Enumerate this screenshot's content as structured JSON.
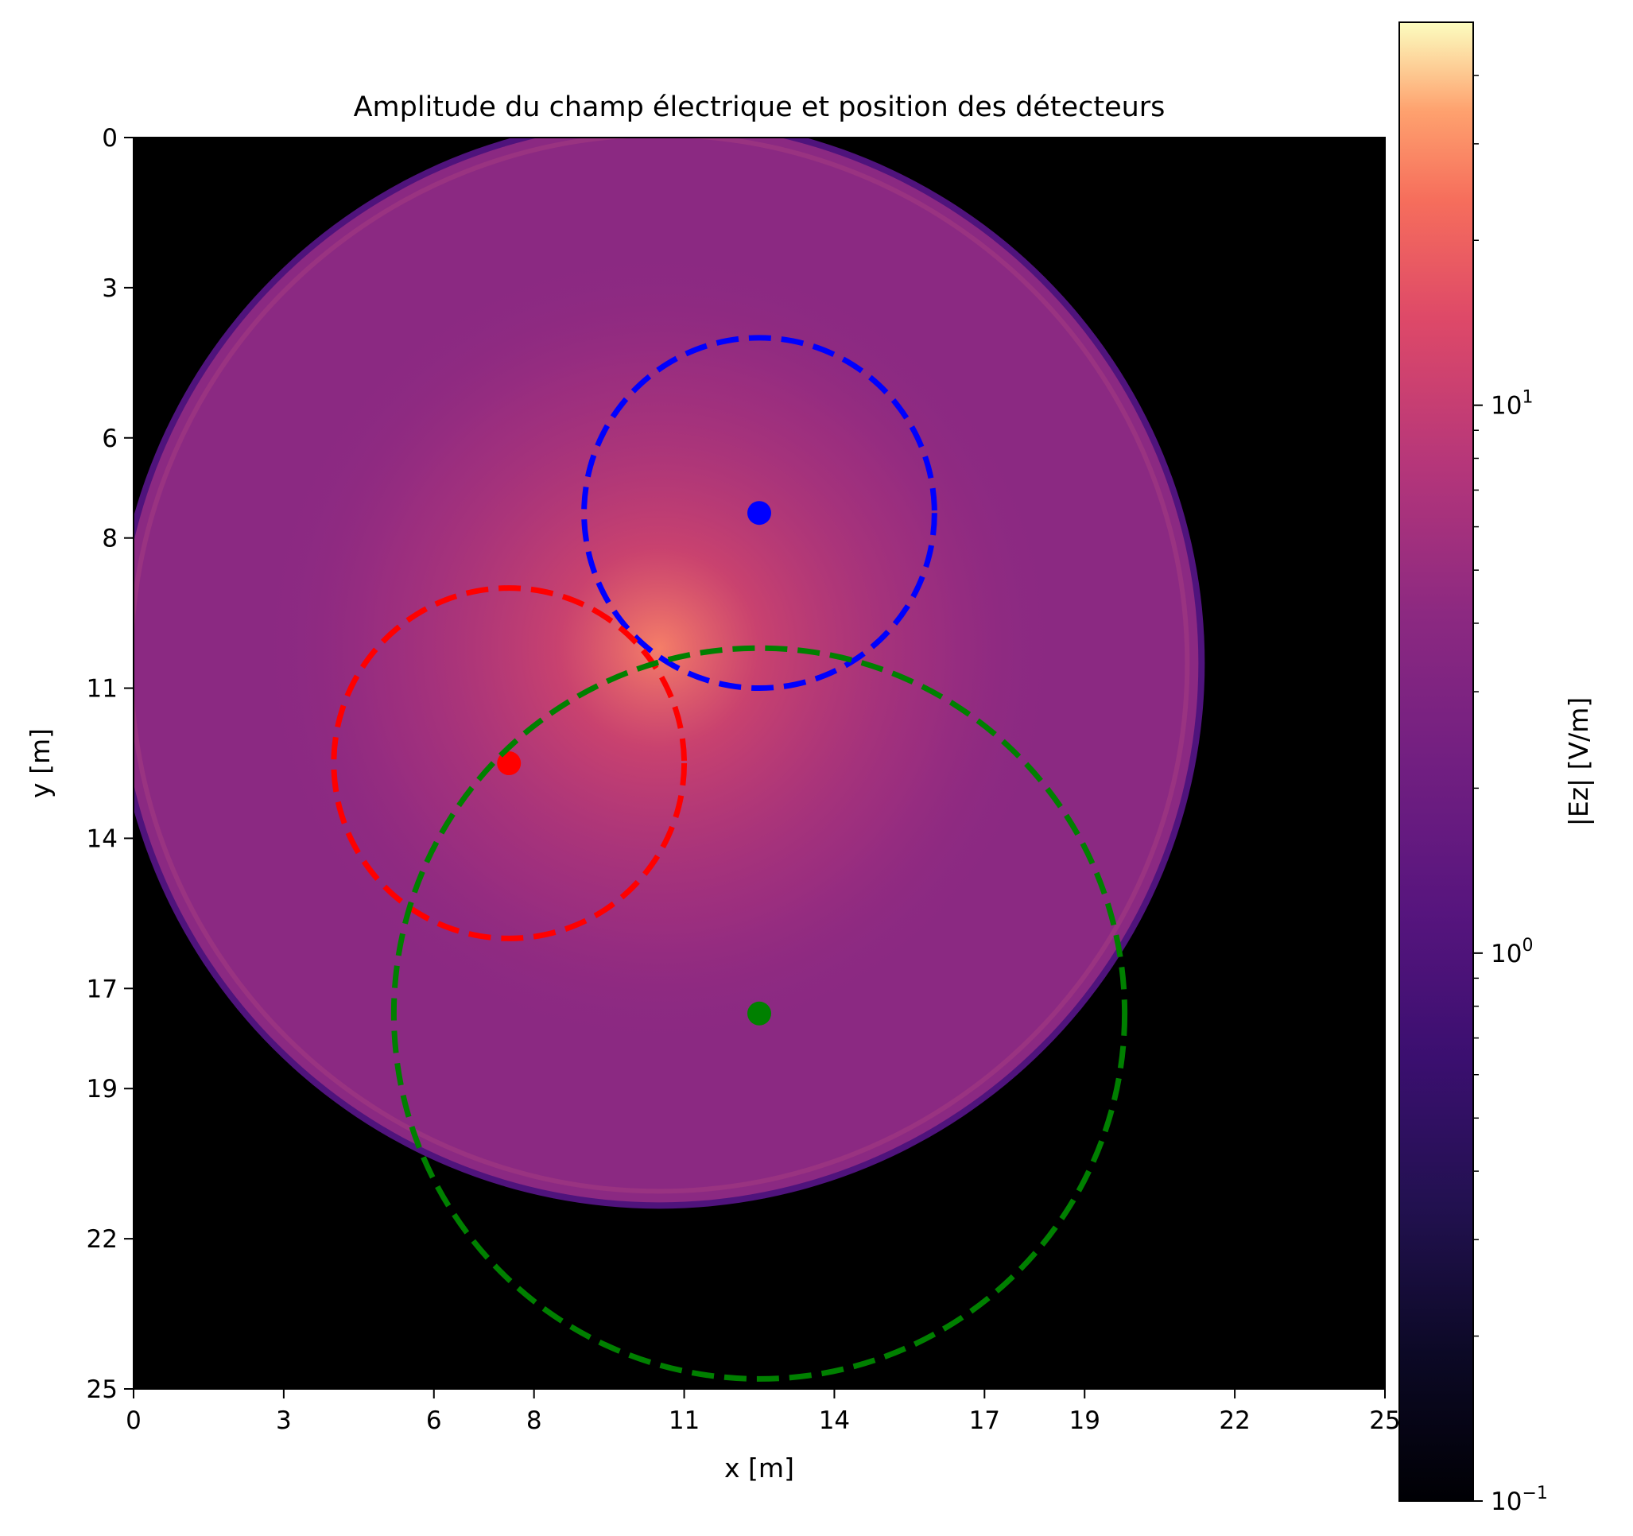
{
  "chart_data": {
    "type": "heatmap",
    "title": "Amplitude du champ électrique et position des détecteurs",
    "xlabel": "x [m]",
    "ylabel": "y [m]",
    "xlim": [
      0,
      25
    ],
    "ylim": [
      25,
      0
    ],
    "x_ticks": [
      0,
      3,
      6,
      8,
      11,
      14,
      17,
      19,
      22,
      25
    ],
    "x_tick_labels": [
      "0",
      "3",
      "6",
      "8",
      "11",
      "14",
      "17",
      "19",
      "22",
      "25"
    ],
    "y_ticks": [
      0,
      3,
      6,
      8,
      11,
      14,
      17,
      19,
      22,
      25
    ],
    "y_tick_labels": [
      "0",
      "3",
      "6",
      "8",
      "11",
      "14",
      "17",
      "19",
      "22",
      "25"
    ],
    "colormap": "magma",
    "background_color": "#000000",
    "field": {
      "center_x": 10.5,
      "center_y": 10.5,
      "radius": 10.9,
      "peak_value": 6.0,
      "typical_value": 1.0
    },
    "source": {
      "x": 10.5,
      "y": 10.2
    },
    "colorbar": {
      "label": "|Ez| [V/m]",
      "scale": "log",
      "min": 0.1,
      "max": 50,
      "tick_labels": [
        {
          "base": "10",
          "exp": "−1",
          "value": 0.1
        },
        {
          "base": "10",
          "exp": "0",
          "value": 1
        },
        {
          "base": "10",
          "exp": "1",
          "value": 10
        }
      ]
    },
    "detectors": [
      {
        "color": "#0000ff",
        "x": 12.5,
        "y": 7.5,
        "radius": 3.5
      },
      {
        "color": "#ff0000",
        "x": 7.5,
        "y": 12.5,
        "radius": 3.5
      },
      {
        "color": "#008000",
        "x": 12.5,
        "y": 17.5,
        "radius": 7.3
      }
    ],
    "grid": false,
    "legend": "none"
  }
}
